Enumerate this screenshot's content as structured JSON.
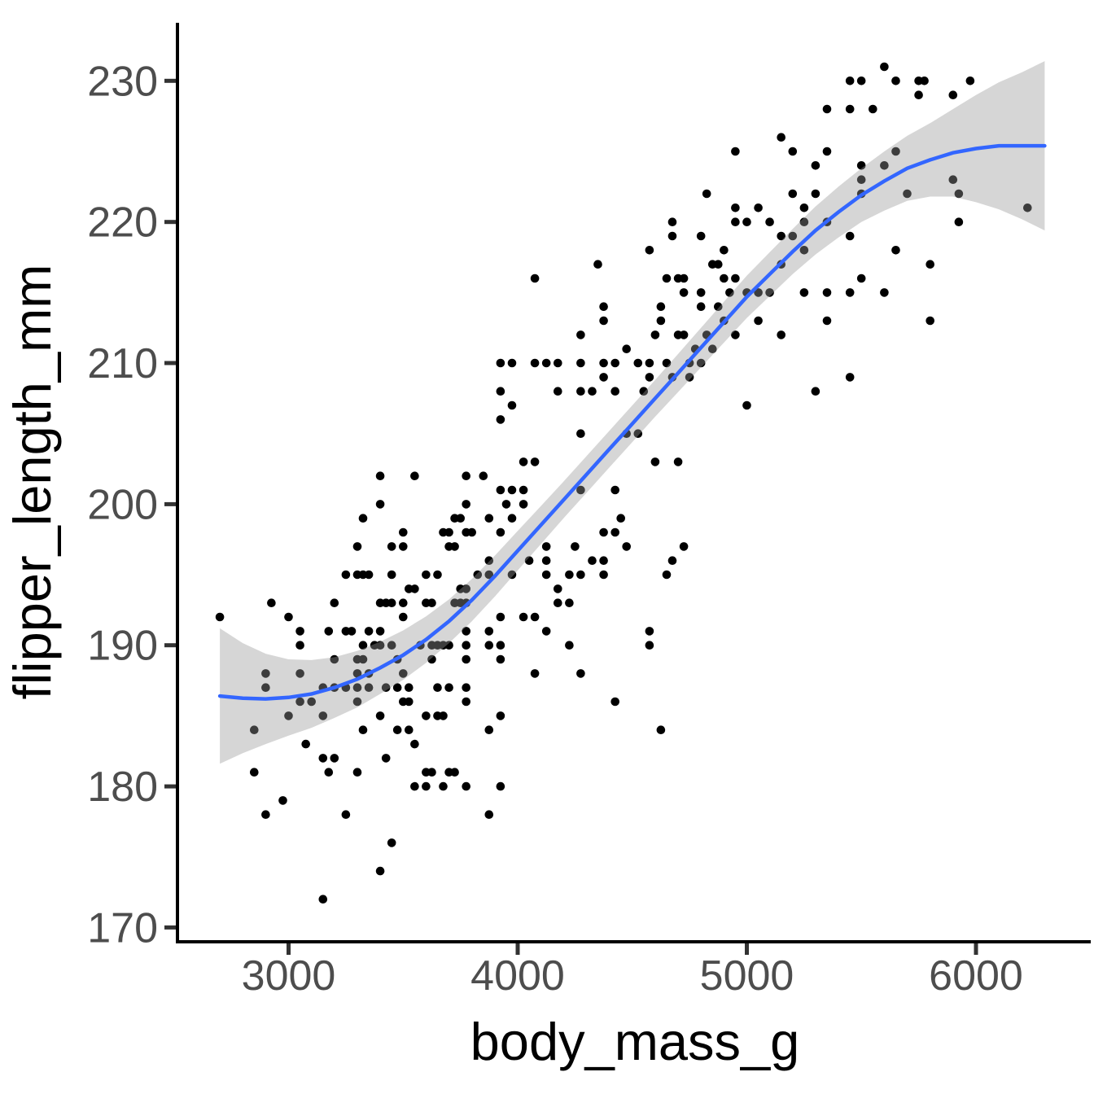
{
  "chart_data": {
    "type": "scatter",
    "title": "",
    "xlabel": "body_mass_g",
    "ylabel": "flipper_length_mm",
    "x_ticks": [
      3000,
      4000,
      5000,
      6000
    ],
    "y_ticks": [
      170,
      180,
      190,
      200,
      210,
      220,
      230
    ],
    "xlim": [
      2522,
      6501
    ],
    "ylim": [
      169.1,
      234.0
    ],
    "grid": "off",
    "legend": "none",
    "theme": "classic (left/bottom axis lines only)",
    "colors": {
      "point": "#000000",
      "smooth_line": "#3366FF",
      "band": "rgba(153,153,153,0.40)",
      "axis_line": "#000000",
      "tick_mark": "#333333",
      "axis_text": "#4D4D4D",
      "axis_title": "#000000",
      "background": "#FFFFFF"
    },
    "point_radius_px": 5.3,
    "points_by_flipper": {
      "231": [
        5600
      ],
      "230": [
        5450,
        5500,
        5650,
        5750,
        5775,
        5975
      ],
      "229": [
        5750,
        5900
      ],
      "228": [
        5350,
        5450,
        5550
      ],
      "226": [
        5150
      ],
      "225": [
        4950,
        5200,
        5350,
        5650
      ],
      "224": [
        5300,
        5500,
        5600
      ],
      "223": [
        5500,
        5900
      ],
      "222": [
        4825,
        5200,
        5300,
        5500,
        5700,
        5925
      ],
      "221": [
        4950,
        5050,
        5250,
        6225
      ],
      "220": [
        4675,
        4950,
        5000,
        5100,
        5250,
        5350,
        5925
      ],
      "219": [
        4675,
        4800,
        5150,
        5200,
        5450
      ],
      "218": [
        4575,
        4900,
        5250,
        5650
      ],
      "217": [
        4350,
        4850,
        4875,
        5150,
        5800
      ],
      "216": [
        4075,
        4650,
        4700,
        4725,
        4900,
        4950,
        5500
      ],
      "215": [
        4725,
        4800,
        4925,
        5000,
        5050,
        5100,
        5250,
        5350,
        5450,
        5600
      ],
      "214": [
        4375,
        4625,
        4800,
        4875
      ],
      "213": [
        4375,
        4625,
        4900,
        5050,
        5350,
        5800
      ],
      "212": [
        4275,
        4600,
        4700,
        4725,
        4825,
        4950,
        5150
      ],
      "211": [
        4475,
        4775,
        4850
      ],
      "210": [
        3925,
        3975,
        4075,
        4125,
        4175,
        4275,
        4375,
        4425,
        4525,
        4575,
        4650,
        4750,
        4800
      ],
      "209": [
        4375,
        4575,
        4675,
        4750,
        5450
      ],
      "208": [
        3925,
        4175,
        4275,
        4325,
        4425,
        4550,
        5300
      ],
      "207": [
        3975,
        5000
      ],
      "206": [
        3925
      ],
      "205": [
        4275,
        4475,
        4525
      ],
      "203": [
        4025,
        4075,
        4600,
        4700
      ],
      "202": [
        3400,
        3550,
        3775,
        3850
      ],
      "201": [
        3925,
        3975,
        4025,
        4275,
        4425
      ],
      "200": [
        3400,
        3775,
        3950,
        4025
      ],
      "199": [
        3325,
        3725,
        3750,
        3875,
        3975,
        4450
      ],
      "198": [
        3500,
        3675,
        3700,
        3775,
        3800,
        3925,
        4375,
        4425
      ],
      "197": [
        3300,
        3450,
        3500,
        3700,
        3725,
        4125,
        4250,
        4475,
        4725
      ],
      "196": [
        3875,
        4050,
        4125,
        4325,
        4375,
        4675
      ],
      "195": [
        3250,
        3300,
        3325,
        3350,
        3450,
        3600,
        3650,
        3825,
        3875,
        3975,
        4125,
        4225,
        4275,
        4375,
        4650
      ],
      "194": [
        3525,
        3550,
        3750,
        3775,
        4175
      ],
      "193": [
        2925,
        3200,
        3400,
        3425,
        3450,
        3500,
        3600,
        3625,
        3725,
        3750,
        3775,
        4175,
        4225
      ],
      "192": [
        2700,
        3000,
        3500,
        3925,
        4025,
        4075
      ],
      "191": [
        3050,
        3175,
        3250,
        3275,
        3350,
        3400,
        3775,
        3875,
        4125,
        4575
      ],
      "190": [
        3050,
        3325,
        3375,
        3400,
        3450,
        3575,
        3625,
        3650,
        3675,
        3700,
        3775,
        3875,
        3925,
        4225,
        4575
      ],
      "189": [
        3200,
        3300,
        3325,
        3475,
        3625,
        3775,
        3925
      ],
      "188": [
        2900,
        3050,
        3300,
        3350,
        3500,
        4075,
        4275
      ],
      "187": [
        2900,
        3150,
        3200,
        3250,
        3300,
        3350,
        3425,
        3475,
        3525,
        3650,
        3700,
        3775
      ],
      "186": [
        3050,
        3100,
        3300,
        3500,
        3525,
        3775,
        4425
      ],
      "185": [
        3000,
        3150,
        3400,
        3600,
        3650,
        3675,
        3925
      ],
      "184": [
        2850,
        3325,
        3475,
        3525,
        3875,
        4625
      ],
      "183": [
        3075,
        3550
      ],
      "182": [
        3150,
        3200,
        3425
      ],
      "181": [
        2850,
        3175,
        3300,
        3600,
        3625,
        3700,
        3725
      ],
      "180": [
        3550,
        3600,
        3675,
        3775,
        3925
      ],
      "179": [
        2975
      ],
      "178": [
        2900,
        3250,
        3875
      ],
      "176": [
        3450
      ],
      "174": [
        3400
      ],
      "172": [
        3150
      ]
    },
    "smooth": {
      "method": "gam-like smooth with confidence band",
      "x": [
        2700,
        2800,
        2900,
        3000,
        3100,
        3200,
        3300,
        3400,
        3500,
        3600,
        3700,
        3800,
        3900,
        4000,
        4100,
        4200,
        4300,
        4400,
        4500,
        4600,
        4700,
        4800,
        4900,
        5000,
        5100,
        5200,
        5300,
        5400,
        5500,
        5600,
        5700,
        5800,
        5900,
        6000,
        6100,
        6200,
        6300
      ],
      "y": [
        186.4,
        186.25,
        186.2,
        186.3,
        186.55,
        187.0,
        187.6,
        188.4,
        189.3,
        190.4,
        191.7,
        193.2,
        194.9,
        196.7,
        198.5,
        200.3,
        202.1,
        203.9,
        205.7,
        207.5,
        209.3,
        211.1,
        212.9,
        214.7,
        216.3,
        217.9,
        219.4,
        220.7,
        221.9,
        222.9,
        223.8,
        224.4,
        224.9,
        225.2,
        225.4,
        225.4,
        225.4
      ],
      "band_halfwidth": [
        4.8,
        3.9,
        3.2,
        2.7,
        2.4,
        2.15,
        2.0,
        1.85,
        1.75,
        1.65,
        1.55,
        1.5,
        1.45,
        1.4,
        1.35,
        1.3,
        1.3,
        1.3,
        1.3,
        1.3,
        1.35,
        1.4,
        1.45,
        1.5,
        1.55,
        1.6,
        1.7,
        1.8,
        1.9,
        2.1,
        2.3,
        2.6,
        3.1,
        3.8,
        4.5,
        5.2,
        6.0
      ]
    }
  }
}
